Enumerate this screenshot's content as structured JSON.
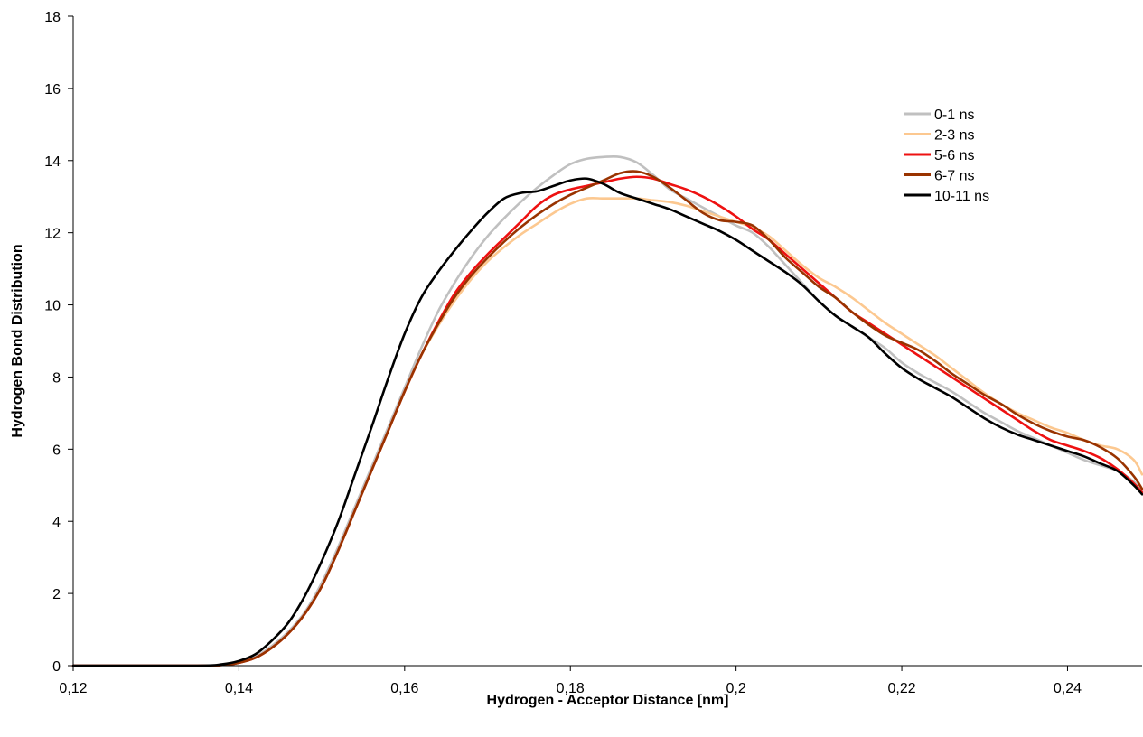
{
  "chart_data": {
    "type": "line",
    "title": "",
    "xlabel": "Hydrogen - Acceptor Distance  [nm]",
    "ylabel": "Hydrogen Bond Distribution",
    "xlim": [
      0.12,
      0.249
    ],
    "ylim": [
      0,
      18
    ],
    "xticks": [
      0.12,
      0.14,
      0.16,
      0.18,
      0.2,
      0.22,
      0.24
    ],
    "xtick_labels": [
      "0,12",
      "0,14",
      "0,16",
      "0,18",
      "0,2",
      "0,22",
      "0,24"
    ],
    "yticks": [
      0,
      2,
      4,
      6,
      8,
      10,
      12,
      14,
      16,
      18
    ],
    "ytick_labels": [
      "0",
      "2",
      "4",
      "6",
      "8",
      "10",
      "12",
      "14",
      "16",
      "18"
    ],
    "grid": false,
    "legend_position": "top-right",
    "series": [
      {
        "name": "0-1 ns",
        "color": "#c0c0c0",
        "x": [
          0.12,
          0.135,
          0.138,
          0.14,
          0.142,
          0.144,
          0.146,
          0.148,
          0.15,
          0.152,
          0.154,
          0.156,
          0.158,
          0.16,
          0.162,
          0.164,
          0.166,
          0.168,
          0.17,
          0.172,
          0.174,
          0.176,
          0.178,
          0.18,
          0.182,
          0.184,
          0.186,
          0.188,
          0.19,
          0.192,
          0.194,
          0.196,
          0.198,
          0.2,
          0.202,
          0.204,
          0.206,
          0.208,
          0.21,
          0.212,
          0.214,
          0.216,
          0.218,
          0.22,
          0.222,
          0.224,
          0.226,
          0.228,
          0.23,
          0.232,
          0.234,
          0.236,
          0.238,
          0.24,
          0.242,
          0.244,
          0.246,
          0.248,
          0.249
        ],
        "y": [
          0,
          0,
          0.03,
          0.1,
          0.25,
          0.55,
          0.95,
          1.5,
          2.3,
          3.3,
          4.4,
          5.5,
          6.6,
          7.7,
          8.8,
          9.8,
          10.6,
          11.3,
          11.9,
          12.4,
          12.85,
          13.25,
          13.6,
          13.9,
          14.05,
          14.1,
          14.1,
          13.95,
          13.6,
          13.2,
          12.95,
          12.7,
          12.45,
          12.2,
          12.0,
          11.6,
          11.1,
          10.6,
          10.1,
          9.7,
          9.4,
          9.1,
          8.8,
          8.4,
          8.1,
          7.85,
          7.6,
          7.3,
          7.0,
          6.75,
          6.5,
          6.3,
          6.1,
          5.9,
          5.7,
          5.55,
          5.4,
          5.1,
          4.85
        ]
      },
      {
        "name": "2-3 ns",
        "color": "#fcc890",
        "x": [
          0.12,
          0.135,
          0.138,
          0.14,
          0.142,
          0.144,
          0.146,
          0.148,
          0.15,
          0.152,
          0.154,
          0.156,
          0.158,
          0.16,
          0.162,
          0.164,
          0.166,
          0.168,
          0.17,
          0.172,
          0.174,
          0.176,
          0.178,
          0.18,
          0.182,
          0.184,
          0.186,
          0.188,
          0.19,
          0.192,
          0.194,
          0.196,
          0.198,
          0.2,
          0.202,
          0.204,
          0.206,
          0.208,
          0.21,
          0.212,
          0.214,
          0.216,
          0.218,
          0.22,
          0.222,
          0.224,
          0.226,
          0.228,
          0.23,
          0.232,
          0.234,
          0.236,
          0.238,
          0.24,
          0.242,
          0.244,
          0.246,
          0.248,
          0.249
        ],
        "y": [
          0,
          0,
          0.02,
          0.08,
          0.22,
          0.5,
          0.9,
          1.45,
          2.2,
          3.2,
          4.3,
          5.4,
          6.5,
          7.6,
          8.6,
          9.4,
          10.1,
          10.7,
          11.2,
          11.6,
          11.95,
          12.25,
          12.55,
          12.8,
          12.95,
          12.95,
          12.95,
          12.95,
          12.9,
          12.85,
          12.75,
          12.6,
          12.45,
          12.3,
          12.15,
          11.9,
          11.5,
          11.1,
          10.75,
          10.5,
          10.2,
          9.85,
          9.5,
          9.2,
          8.9,
          8.6,
          8.25,
          7.9,
          7.55,
          7.25,
          7.0,
          6.8,
          6.6,
          6.45,
          6.25,
          6.1,
          6.0,
          5.7,
          5.3
        ]
      },
      {
        "name": "5-6 ns",
        "color": "#ee1111",
        "x": [
          0.12,
          0.135,
          0.138,
          0.14,
          0.142,
          0.144,
          0.146,
          0.148,
          0.15,
          0.152,
          0.154,
          0.156,
          0.158,
          0.16,
          0.162,
          0.164,
          0.166,
          0.168,
          0.17,
          0.172,
          0.174,
          0.176,
          0.178,
          0.18,
          0.182,
          0.184,
          0.186,
          0.188,
          0.19,
          0.192,
          0.194,
          0.196,
          0.198,
          0.2,
          0.202,
          0.204,
          0.206,
          0.208,
          0.21,
          0.212,
          0.214,
          0.216,
          0.218,
          0.22,
          0.222,
          0.224,
          0.226,
          0.228,
          0.23,
          0.232,
          0.234,
          0.236,
          0.238,
          0.24,
          0.242,
          0.244,
          0.246,
          0.248,
          0.249
        ],
        "y": [
          0,
          0,
          0.02,
          0.08,
          0.22,
          0.5,
          0.9,
          1.45,
          2.2,
          3.2,
          4.3,
          5.4,
          6.5,
          7.6,
          8.6,
          9.5,
          10.3,
          10.9,
          11.4,
          11.85,
          12.3,
          12.75,
          13.05,
          13.2,
          13.3,
          13.4,
          13.5,
          13.55,
          13.5,
          13.35,
          13.2,
          13.0,
          12.75,
          12.45,
          12.1,
          11.8,
          11.4,
          11.0,
          10.6,
          10.2,
          9.8,
          9.5,
          9.2,
          8.9,
          8.6,
          8.3,
          8.0,
          7.7,
          7.4,
          7.1,
          6.8,
          6.5,
          6.25,
          6.1,
          5.95,
          5.75,
          5.45,
          5.05,
          4.8
        ]
      },
      {
        "name": "6-7 ns",
        "color": "#993300",
        "x": [
          0.12,
          0.135,
          0.138,
          0.14,
          0.142,
          0.144,
          0.146,
          0.148,
          0.15,
          0.152,
          0.154,
          0.156,
          0.158,
          0.16,
          0.162,
          0.164,
          0.166,
          0.168,
          0.17,
          0.172,
          0.174,
          0.176,
          0.178,
          0.18,
          0.182,
          0.184,
          0.186,
          0.188,
          0.19,
          0.192,
          0.194,
          0.196,
          0.198,
          0.2,
          0.202,
          0.204,
          0.206,
          0.208,
          0.21,
          0.212,
          0.214,
          0.216,
          0.218,
          0.22,
          0.222,
          0.224,
          0.226,
          0.228,
          0.23,
          0.232,
          0.234,
          0.236,
          0.238,
          0.24,
          0.242,
          0.244,
          0.246,
          0.248,
          0.249
        ],
        "y": [
          0,
          0,
          0.02,
          0.08,
          0.22,
          0.5,
          0.9,
          1.45,
          2.2,
          3.2,
          4.3,
          5.4,
          6.5,
          7.6,
          8.6,
          9.45,
          10.2,
          10.8,
          11.3,
          11.75,
          12.15,
          12.5,
          12.8,
          13.05,
          13.25,
          13.45,
          13.65,
          13.7,
          13.55,
          13.25,
          12.9,
          12.55,
          12.35,
          12.3,
          12.2,
          11.8,
          11.3,
          10.9,
          10.5,
          10.2,
          9.8,
          9.45,
          9.15,
          8.95,
          8.75,
          8.45,
          8.1,
          7.8,
          7.5,
          7.25,
          6.95,
          6.7,
          6.5,
          6.35,
          6.25,
          6.05,
          5.75,
          5.25,
          4.9
        ]
      },
      {
        "name": "10-11 ns",
        "color": "#000000",
        "x": [
          0.12,
          0.135,
          0.138,
          0.14,
          0.142,
          0.144,
          0.146,
          0.148,
          0.15,
          0.152,
          0.154,
          0.156,
          0.158,
          0.16,
          0.162,
          0.164,
          0.166,
          0.168,
          0.17,
          0.172,
          0.174,
          0.176,
          0.178,
          0.18,
          0.182,
          0.184,
          0.186,
          0.188,
          0.19,
          0.192,
          0.194,
          0.196,
          0.198,
          0.2,
          0.202,
          0.204,
          0.206,
          0.208,
          0.21,
          0.212,
          0.214,
          0.216,
          0.218,
          0.22,
          0.222,
          0.224,
          0.226,
          0.228,
          0.23,
          0.232,
          0.234,
          0.236,
          0.238,
          0.24,
          0.242,
          0.244,
          0.246,
          0.248,
          0.249
        ],
        "y": [
          0,
          0,
          0.04,
          0.13,
          0.32,
          0.7,
          1.2,
          1.95,
          2.9,
          4.0,
          5.3,
          6.6,
          7.95,
          9.2,
          10.2,
          10.9,
          11.5,
          12.05,
          12.55,
          12.95,
          13.1,
          13.15,
          13.3,
          13.45,
          13.5,
          13.35,
          13.1,
          12.95,
          12.8,
          12.65,
          12.45,
          12.25,
          12.05,
          11.8,
          11.5,
          11.2,
          10.9,
          10.55,
          10.1,
          9.7,
          9.4,
          9.1,
          8.65,
          8.25,
          7.95,
          7.7,
          7.45,
          7.15,
          6.85,
          6.6,
          6.4,
          6.25,
          6.1,
          5.95,
          5.8,
          5.6,
          5.4,
          5.0,
          4.75
        ]
      }
    ]
  }
}
